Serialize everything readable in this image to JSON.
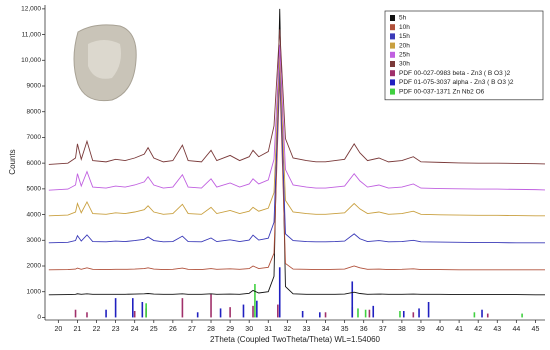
{
  "chart_data": {
    "type": "xrd",
    "x_label": "2Theta (Coupled TwoTheta/Theta) WL=1.54060",
    "y_label": "Counts",
    "xlim": [
      19.3,
      45.5
    ],
    "ylim": [
      -100,
      12150
    ],
    "xticks": [
      20,
      21,
      22,
      23,
      24,
      25,
      26,
      27,
      28,
      29,
      30,
      31,
      32,
      33,
      34,
      35,
      36,
      37,
      38,
      39,
      40,
      41,
      42,
      43,
      44,
      45
    ],
    "yticks": [
      0,
      1000,
      2000,
      3000,
      4000,
      5000,
      6000,
      7000,
      8000,
      9000,
      {
        "value": 10000,
        "label": "10,000"
      },
      {
        "value": 11000,
        "label": "11,000"
      },
      {
        "value": 12000,
        "label": "12,000"
      }
    ],
    "legend": "top-right",
    "x": [
      19.5,
      20.5,
      20.9,
      21.0,
      21.2,
      21.5,
      21.8,
      22.5,
      23.0,
      23.5,
      24.0,
      24.5,
      24.7,
      25.0,
      25.5,
      26.0,
      26.5,
      26.8,
      27.5,
      28.0,
      28.3,
      29.0,
      29.5,
      30.0,
      30.2,
      30.5,
      31.0,
      31.3,
      31.6,
      31.9,
      32.3,
      33.0,
      33.5,
      34.0,
      34.5,
      35.0,
      35.5,
      35.8,
      36.2,
      36.8,
      37.3,
      38.0,
      38.6,
      39.0,
      40.0,
      41.0,
      42.0,
      43.0,
      44.0,
      45.0,
      45.5
    ],
    "series": [
      {
        "name": "5h",
        "color": "#111111",
        "values": [
          880,
          890,
          900,
          920,
          900,
          920,
          900,
          900,
          900,
          900,
          910,
          920,
          930,
          910,
          900,
          900,
          920,
          900,
          900,
          920,
          900,
          910,
          900,
          940,
          1050,
          950,
          1000,
          1600,
          12000,
          1200,
          920,
          900,
          900,
          900,
          900,
          910,
          980,
          930,
          900,
          910,
          900,
          900,
          910,
          900,
          900,
          890,
          890,
          890,
          890,
          880,
          880
        ]
      },
      {
        "name": "10h",
        "color": "#b0503a",
        "values": [
          1850,
          1860,
          1880,
          1920,
          1870,
          1930,
          1870,
          1860,
          1870,
          1870,
          1880,
          1900,
          1930,
          1880,
          1860,
          1870,
          1920,
          1870,
          1860,
          1900,
          1870,
          1890,
          1870,
          1900,
          2000,
          1900,
          1950,
          2500,
          9400,
          2100,
          1880,
          1870,
          1860,
          1860,
          1870,
          1880,
          2000,
          1930,
          1870,
          1880,
          1860,
          1870,
          1890,
          1860,
          1860,
          1850,
          1850,
          1850,
          1850,
          1850,
          1850
        ]
      },
      {
        "name": "15h",
        "color": "#3a3ab8",
        "values": [
          2900,
          2920,
          2990,
          3180,
          2970,
          3210,
          2950,
          2940,
          2970,
          2950,
          2990,
          3040,
          3130,
          2990,
          2940,
          2950,
          3160,
          2950,
          2940,
          3090,
          2950,
          3020,
          2950,
          3010,
          3200,
          3010,
          3080,
          3700,
          9800,
          3250,
          2990,
          2950,
          2940,
          2940,
          2950,
          2970,
          3250,
          3060,
          2950,
          2990,
          2940,
          2950,
          3000,
          2940,
          2930,
          2920,
          2910,
          2910,
          2900,
          2900,
          2900
        ]
      },
      {
        "name": "20h",
        "color": "#c9a040",
        "values": [
          3950,
          3980,
          4100,
          4430,
          4070,
          4490,
          4040,
          4010,
          4070,
          4040,
          4100,
          4190,
          4340,
          4100,
          4010,
          4040,
          4400,
          4040,
          4010,
          4280,
          4040,
          4160,
          4040,
          4130,
          4280,
          4130,
          4250,
          4850,
          10200,
          4550,
          4100,
          4040,
          4010,
          4010,
          4040,
          4070,
          4430,
          4220,
          4040,
          4100,
          4010,
          4040,
          4130,
          4010,
          3990,
          3980,
          3970,
          3970,
          3960,
          3950,
          3950
        ]
      },
      {
        "name": "25h",
        "color": "#c060e0",
        "values": [
          4950,
          4990,
          5150,
          5590,
          5110,
          5670,
          5070,
          5030,
          5110,
          5070,
          5150,
          5270,
          5470,
          5150,
          5030,
          5070,
          5550,
          5070,
          5030,
          5390,
          5070,
          5230,
          5070,
          5190,
          5390,
          5190,
          5350,
          6150,
          10600,
          5750,
          5150,
          5070,
          5030,
          5030,
          5070,
          5110,
          5590,
          5310,
          5070,
          5150,
          5030,
          5070,
          5190,
          5030,
          5010,
          5000,
          4990,
          4990,
          4980,
          4970,
          4960
        ]
      },
      {
        "name": "30h",
        "color": "#7a3a3a",
        "values": [
          5950,
          6000,
          6200,
          6750,
          6150,
          6850,
          6100,
          6050,
          6150,
          6100,
          6200,
          6350,
          6600,
          6200,
          6050,
          6100,
          6700,
          6100,
          6050,
          6500,
          6100,
          6300,
          6100,
          6250,
          6500,
          6250,
          6450,
          7450,
          11200,
          6950,
          6200,
          6100,
          6050,
          6050,
          6100,
          6150,
          6750,
          6400,
          6100,
          6200,
          6050,
          6100,
          6250,
          6050,
          6030,
          6010,
          6000,
          6000,
          5990,
          5980,
          5970
        ]
      }
    ],
    "reference_patterns": [
      {
        "name": "PDF 00-027-0983  beta - Zn3 ( B O3 )2",
        "color": "#a0306a",
        "positions": [
          20.9,
          21.5,
          24.0,
          24.6,
          26.5,
          28.0,
          29.0,
          30.2,
          31.5,
          34.0,
          35.4,
          36.3,
          38.6,
          42.5
        ],
        "intensities": [
          300,
          200,
          250,
          350,
          750,
          900,
          400,
          450,
          500,
          200,
          400,
          300,
          200,
          150
        ]
      },
      {
        "name": "PDF 01-075-3037  alpha - Zn3 ( B O3 )2",
        "color": "#2020c0",
        "positions": [
          22.5,
          23.0,
          23.9,
          24.4,
          27.3,
          28.5,
          29.7,
          30.4,
          31.6,
          32.8,
          33.7,
          35.4,
          36.5,
          38.1,
          38.9,
          39.4,
          42.2
        ],
        "intensities": [
          300,
          750,
          750,
          600,
          200,
          350,
          500,
          650,
          1950,
          250,
          200,
          1400,
          450,
          250,
          350,
          600,
          300
        ]
      },
      {
        "name": "PDF 00-037-1371  Zn Nb2 O6",
        "color": "#40d040",
        "positions": [
          24.6,
          30.3,
          35.7,
          36.1,
          37.9,
          41.8,
          44.3
        ],
        "intensities": [
          550,
          1300,
          350,
          300,
          250,
          200,
          150
        ]
      }
    ]
  }
}
